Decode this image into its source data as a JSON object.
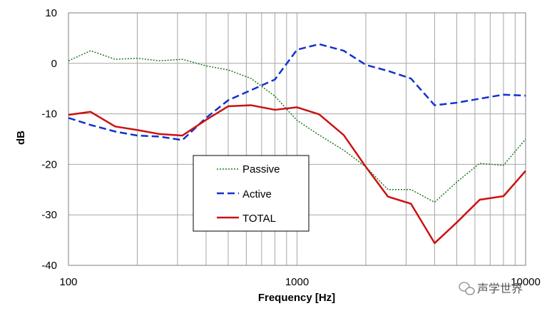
{
  "chart_data": {
    "type": "line",
    "xscale": "log",
    "xlabel": "Frequency [Hz]",
    "ylabel": "dB",
    "xlim": [
      100,
      10000
    ],
    "ylim": [
      -40,
      10
    ],
    "xtick_values": [
      100,
      1000,
      10000
    ],
    "xtick_labels": [
      "100",
      "1000",
      "10000"
    ],
    "ytick_values": [
      10,
      0,
      -10,
      -20,
      -30,
      -40
    ],
    "ytick_labels": [
      "10",
      "0",
      "-10",
      "-20",
      "-30",
      "-40"
    ],
    "grid": true,
    "legend_position": "center-left",
    "series": [
      {
        "name": "Passive",
        "color": "#1e7a1e",
        "dash": "dotted",
        "x": [
          100,
          125,
          160,
          200,
          250,
          315,
          400,
          500,
          630,
          800,
          1000,
          1250,
          1600,
          2000,
          2500,
          3150,
          4000,
          5000,
          6300,
          8000,
          10000
        ],
        "y": [
          0.5,
          2.5,
          0.8,
          1.0,
          0.5,
          0.8,
          -0.5,
          -1.3,
          -3.0,
          -6.5,
          -11.3,
          -14.2,
          -17.2,
          -20.5,
          -25.0,
          -25.0,
          -27.5,
          -23.5,
          -19.8,
          -20.2,
          -15.0
        ]
      },
      {
        "name": "Active",
        "color": "#1133cc",
        "dash": "dashed",
        "x": [
          100,
          125,
          160,
          200,
          250,
          315,
          400,
          500,
          630,
          800,
          1000,
          1250,
          1600,
          2000,
          2500,
          3150,
          4000,
          5000,
          6300,
          8000,
          10000
        ],
        "y": [
          -10.8,
          -12.2,
          -13.5,
          -14.3,
          -14.5,
          -15.2,
          -10.8,
          -7.3,
          -5.3,
          -3.2,
          2.7,
          3.8,
          2.5,
          -0.3,
          -1.5,
          -3.0,
          -8.3,
          -7.8,
          -7.0,
          -6.2,
          -6.4
        ]
      },
      {
        "name": "TOTAL",
        "color": "#cc1111",
        "dash": "solid",
        "x": [
          100,
          125,
          160,
          200,
          250,
          315,
          400,
          500,
          630,
          800,
          1000,
          1250,
          1600,
          2000,
          2500,
          3150,
          4000,
          5000,
          6300,
          8000,
          10000
        ],
        "y": [
          -10.2,
          -9.6,
          -12.5,
          -13.2,
          -14.0,
          -14.3,
          -11.2,
          -8.5,
          -8.3,
          -9.2,
          -8.7,
          -10.1,
          -14.2,
          -20.5,
          -26.4,
          -27.8,
          -35.6,
          -31.5,
          -27.0,
          -26.3,
          -21.3
        ]
      }
    ]
  },
  "watermark": {
    "text": "声学世界",
    "icon": "wechat-icon"
  }
}
